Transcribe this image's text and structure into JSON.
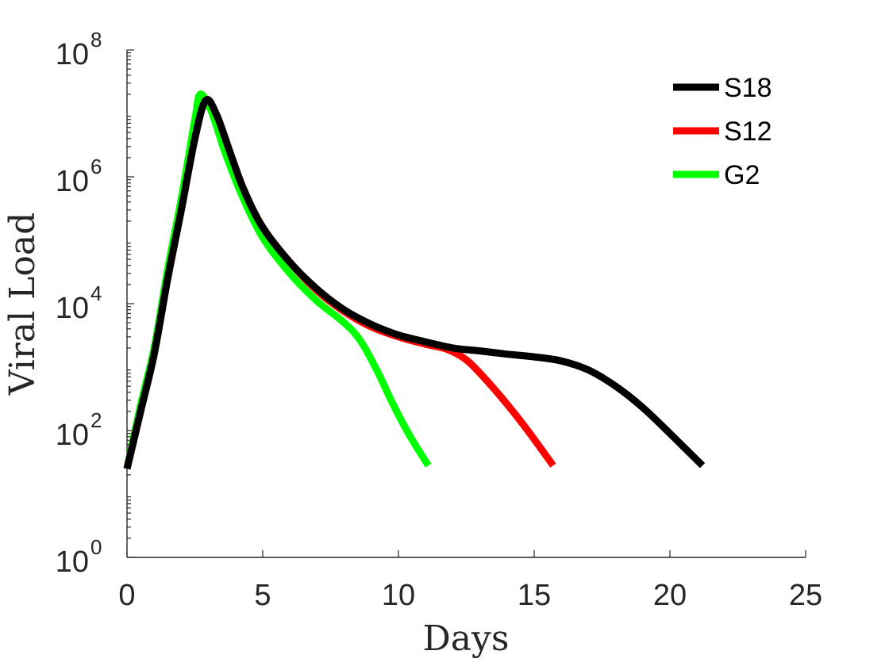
{
  "chart_data": {
    "type": "line",
    "title": "",
    "xlabel": "Days",
    "ylabel": "Viral Load",
    "xlim": [
      0,
      25
    ],
    "ylim": [
      1,
      100000000
    ],
    "yscale": "log",
    "grid": false,
    "legend_position": "top-right",
    "x_ticks": [
      {
        "value": 0,
        "label": "0"
      },
      {
        "value": 5,
        "label": "5"
      },
      {
        "value": 10,
        "label": "10"
      },
      {
        "value": 15,
        "label": "15"
      },
      {
        "value": 20,
        "label": "20"
      },
      {
        "value": 25,
        "label": "25"
      }
    ],
    "y_ticks": [
      {
        "value": 1,
        "base": "10",
        "exponent": "0"
      },
      {
        "value": 100,
        "base": "10",
        "exponent": "2"
      },
      {
        "value": 10000,
        "base": "10",
        "exponent": "4"
      },
      {
        "value": 1000000,
        "base": "10",
        "exponent": "6"
      },
      {
        "value": 100000000,
        "base": "10",
        "exponent": "8"
      }
    ],
    "series": [
      {
        "name": "S18",
        "color": "#000000",
        "x": [
          0,
          0.5,
          1,
          1.5,
          2,
          2.5,
          2.9,
          3.3,
          3.8,
          4.3,
          5,
          6,
          7,
          8,
          9,
          10,
          11,
          12,
          13,
          14,
          15,
          16,
          17,
          18,
          19,
          20,
          21.2
        ],
        "y": [
          25,
          200,
          1600,
          25000,
          300000,
          4000000,
          16000000,
          9500000,
          2400000,
          630000,
          160000,
          45000,
          17000,
          8000,
          4700,
          3200,
          2500,
          2000,
          1800,
          1600,
          1450,
          1250,
          900,
          500,
          230,
          90,
          28
        ]
      },
      {
        "name": "S12",
        "color": "#ff0000",
        "x": [
          0,
          0.5,
          1,
          1.5,
          2,
          2.5,
          2.9,
          3.3,
          3.8,
          4.3,
          5,
          6,
          7,
          8,
          9,
          10,
          11,
          11.8,
          12.5,
          13.2,
          14,
          14.8,
          15.7
        ],
        "y": [
          25,
          200,
          1600,
          25000,
          300000,
          4000000,
          16000000,
          9500000,
          2400000,
          630000,
          160000,
          45000,
          16000,
          7500,
          4300,
          3000,
          2300,
          1900,
          1300,
          650,
          260,
          95,
          28
        ]
      },
      {
        "name": "G2",
        "color": "#00ff00",
        "x": [
          0,
          0.5,
          1,
          1.5,
          2,
          2.5,
          2.7,
          3.1,
          3.6,
          4.2,
          5,
          6,
          7,
          8,
          8.6,
          9.2,
          9.8,
          10.4,
          11.1
        ],
        "y": [
          25,
          250,
          2000,
          35000,
          450000,
          8000000,
          20000000,
          11000000,
          2500000,
          550000,
          110000,
          30000,
          11000,
          5000,
          2600,
          900,
          260,
          85,
          28
        ]
      }
    ]
  }
}
